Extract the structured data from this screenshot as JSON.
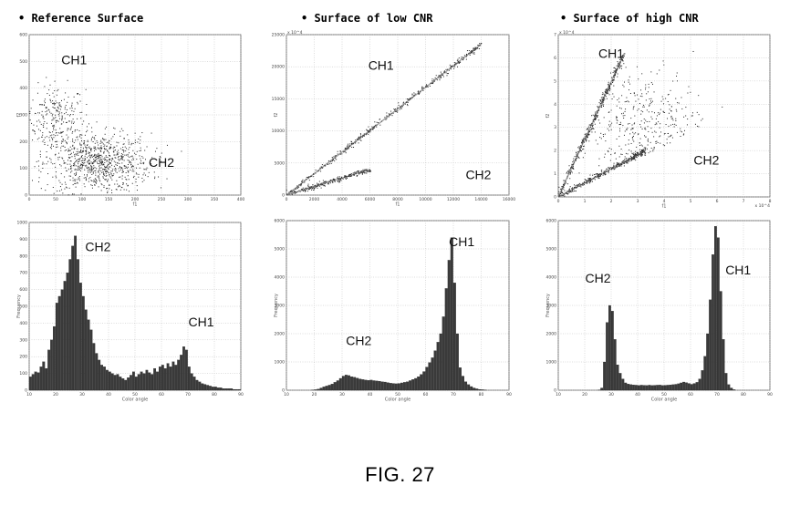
{
  "figure_label": "FIG. 27",
  "chart_data": [
    {
      "id": "scatter-ref",
      "type": "scatter",
      "title": "Reference Surface",
      "xlabel": "f1",
      "ylabel": "f2",
      "xlim": [
        0,
        400
      ],
      "ylim": [
        0,
        600
      ],
      "xticks": [
        0,
        50,
        100,
        150,
        200,
        250,
        300,
        350,
        400
      ],
      "yticks": [
        0,
        100,
        200,
        300,
        400,
        500,
        600
      ],
      "annotations": [
        {
          "text": "CH1",
          "x": 85,
          "y": 490
        },
        {
          "text": "CH2",
          "x": 250,
          "y": 105
        }
      ],
      "clusters": [
        {
          "name": "CH1",
          "cx": 50,
          "cy": 290,
          "sx": 28,
          "sy": 60,
          "n": 260
        },
        {
          "name": "CH2",
          "cx": 130,
          "cy": 120,
          "sx": 50,
          "sy": 55,
          "n": 900
        }
      ]
    },
    {
      "id": "scatter-low",
      "type": "scatter",
      "title": "Surface of low CNR",
      "xlabel": "f1",
      "ylabel": "f2",
      "xlim": [
        0,
        16000
      ],
      "ylim": [
        0,
        25000
      ],
      "xticks": [
        0,
        2000,
        4000,
        6000,
        8000,
        10000,
        12000,
        14000,
        16000
      ],
      "yticks": [
        0,
        5000,
        10000,
        15000,
        20000,
        25000
      ],
      "y_multiplier": "x 10^4",
      "annotations": [
        {
          "text": "CH1",
          "x": 6800,
          "y": 19500
        },
        {
          "text": "CH2",
          "x": 13800,
          "y": 2500
        }
      ],
      "streaks": [
        {
          "name": "CH1",
          "x0": 0,
          "y0": 0,
          "x1": 14000,
          "y1": 23500,
          "n": 420
        },
        {
          "name": "CH2",
          "x0": 0,
          "y0": 0,
          "x1": 6000,
          "y1": 4000,
          "n": 260
        }
      ]
    },
    {
      "id": "scatter-high",
      "type": "scatter",
      "title": "Surface of high CNR",
      "xlabel": "f1",
      "ylabel": "f2",
      "xlim": [
        0,
        8
      ],
      "ylim": [
        0,
        7
      ],
      "xticks": [
        0,
        1,
        2,
        3,
        4,
        5,
        6,
        7,
        8
      ],
      "yticks": [
        0,
        1,
        2,
        3,
        4,
        5,
        6,
        7
      ],
      "x_multiplier": "x 10^4",
      "y_multiplier": "x 10^4",
      "annotations": [
        {
          "text": "CH1",
          "x": 2.0,
          "y": 6.0
        },
        {
          "text": "CH2",
          "x": 5.6,
          "y": 1.4
        }
      ],
      "streaks": [
        {
          "name": "CH1",
          "x0": 0,
          "y0": 0,
          "x1": 2.5,
          "y1": 6.2,
          "n": 380
        },
        {
          "name": "CH2",
          "x0": 0,
          "y0": 0,
          "x1": 3.3,
          "y1": 2.0,
          "n": 380
        }
      ],
      "cloud": {
        "cx": 3.2,
        "cy": 3.0,
        "sx": 1.2,
        "sy": 1.2,
        "n": 500
      }
    },
    {
      "id": "hist-ref",
      "type": "bar",
      "xlabel": "Color angle",
      "ylabel": "Frequency",
      "xlim": [
        10,
        90
      ],
      "ylim": [
        0,
        1000
      ],
      "xticks": [
        10,
        20,
        30,
        40,
        50,
        60,
        70,
        80,
        90
      ],
      "yticks": [
        0,
        100,
        200,
        300,
        400,
        500,
        600,
        700,
        800,
        900,
        1000
      ],
      "bin_start": 10,
      "bin_width": 1,
      "values": [
        80,
        95,
        110,
        105,
        140,
        170,
        130,
        240,
        300,
        380,
        520,
        560,
        600,
        650,
        700,
        780,
        860,
        920,
        780,
        640,
        560,
        480,
        420,
        360,
        280,
        220,
        180,
        150,
        140,
        120,
        110,
        100,
        90,
        95,
        80,
        70,
        60,
        75,
        90,
        110,
        80,
        95,
        110,
        100,
        120,
        105,
        95,
        130,
        110,
        140,
        150,
        130,
        160,
        140,
        170,
        150,
        180,
        210,
        260,
        240,
        140,
        100,
        80,
        60,
        50,
        40,
        35,
        30,
        25,
        20,
        20,
        15,
        15,
        10,
        10,
        10,
        10,
        5,
        5,
        5
      ],
      "annotations": [
        {
          "text": "CH2",
          "x": 36,
          "y": 830
        },
        {
          "text": "CH1",
          "x": 75,
          "y": 380
        }
      ]
    },
    {
      "id": "hist-low",
      "type": "bar",
      "xlabel": "Color angle",
      "ylabel": "Frequency",
      "xlim": [
        10,
        90
      ],
      "ylim": [
        0,
        6000
      ],
      "xticks": [
        10,
        20,
        30,
        40,
        50,
        60,
        70,
        80,
        90
      ],
      "yticks": [
        0,
        1000,
        2000,
        3000,
        4000,
        5000,
        6000
      ],
      "bin_start": 10,
      "bin_width": 1,
      "values": [
        0,
        0,
        0,
        0,
        0,
        0,
        0,
        0,
        0,
        5,
        20,
        40,
        80,
        120,
        150,
        180,
        220,
        280,
        340,
        420,
        500,
        540,
        520,
        480,
        460,
        430,
        400,
        380,
        360,
        350,
        360,
        340,
        330,
        320,
        300,
        290,
        270,
        250,
        240,
        230,
        240,
        260,
        280,
        300,
        340,
        380,
        420,
        480,
        560,
        660,
        820,
        980,
        1150,
        1400,
        1700,
        2000,
        2600,
        3600,
        4600,
        5400,
        3800,
        2000,
        800,
        500,
        300,
        200,
        130,
        80,
        50,
        30,
        20,
        10,
        0,
        0,
        0,
        0,
        0,
        0,
        0,
        0
      ],
      "annotations": [
        {
          "text": "CH1",
          "x": 73,
          "y": 5100
        },
        {
          "text": "CH2",
          "x": 36,
          "y": 1600
        }
      ]
    },
    {
      "id": "hist-high",
      "type": "bar",
      "xlabel": "Color angle",
      "ylabel": "Frequency",
      "xlim": [
        10,
        90
      ],
      "ylim": [
        0,
        6000
      ],
      "xticks": [
        10,
        20,
        30,
        40,
        50,
        60,
        70,
        80,
        90
      ],
      "yticks": [
        0,
        1000,
        2000,
        3000,
        4000,
        5000,
        6000
      ],
      "bin_start": 10,
      "bin_width": 1,
      "values": [
        0,
        0,
        0,
        0,
        0,
        0,
        0,
        0,
        0,
        0,
        0,
        0,
        0,
        0,
        0,
        10,
        80,
        1000,
        2400,
        3000,
        2800,
        1800,
        900,
        600,
        400,
        260,
        220,
        200,
        190,
        180,
        170,
        180,
        175,
        170,
        180,
        170,
        175,
        180,
        185,
        170,
        175,
        180,
        190,
        200,
        210,
        230,
        260,
        290,
        270,
        240,
        210,
        240,
        280,
        400,
        700,
        1200,
        2000,
        3200,
        4800,
        5800,
        5400,
        3500,
        1800,
        600,
        200,
        80,
        20,
        0,
        0,
        0,
        0,
        0,
        0,
        0,
        0,
        0,
        0,
        0,
        0,
        0
      ],
      "annotations": [
        {
          "text": "CH2",
          "x": 25,
          "y": 3800
        },
        {
          "text": "CH1",
          "x": 78,
          "y": 4100
        }
      ]
    }
  ]
}
